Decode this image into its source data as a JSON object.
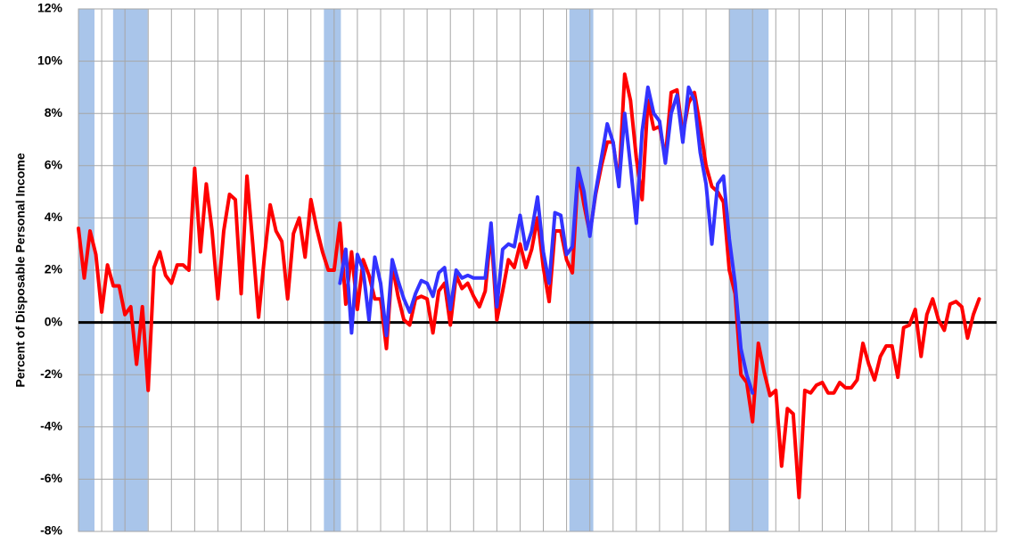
{
  "chart_data": {
    "type": "line",
    "y_axis_label": "Percent of Disposable Personal Income",
    "xlim": [
      1980,
      2019.5
    ],
    "xticks": [
      1980,
      1981,
      1982,
      1983,
      1984,
      1985,
      1986,
      1987,
      1988,
      1989,
      1990,
      1991,
      1992,
      1993,
      1994,
      1995,
      1996,
      1997,
      1998,
      1999,
      2000,
      2001,
      2002,
      2003,
      2004,
      2005,
      2006,
      2007,
      2008,
      2009,
      2010,
      2011,
      2012,
      2013,
      2014,
      2015,
      2016,
      2017,
      2018,
      2019
    ],
    "ylim": [
      -8,
      12
    ],
    "yticks": [
      {
        "value": -8,
        "label": "-8%"
      },
      {
        "value": -6,
        "label": "-6%"
      },
      {
        "value": -4,
        "label": "-4%"
      },
      {
        "value": -2,
        "label": "-2%"
      },
      {
        "value": 0,
        "label": "0%"
      },
      {
        "value": 2,
        "label": "2%"
      },
      {
        "value": 4,
        "label": "4%"
      },
      {
        "value": 6,
        "label": "6%"
      },
      {
        "value": 8,
        "label": "8%"
      },
      {
        "value": 10,
        "label": "10%"
      },
      {
        "value": 12,
        "label": "12%"
      }
    ],
    "grid": true,
    "recessions": [
      [
        1980.0,
        1980.69
      ],
      [
        1981.49,
        1982.98
      ],
      [
        1990.56,
        1991.29
      ],
      [
        2001.12,
        2002.15
      ],
      [
        2008.0,
        2009.69
      ]
    ],
    "recession_color": "#a9c5ea",
    "x": [
      1980,
      1980.25,
      1980.5,
      1980.75,
      1981,
      1981.25,
      1981.5,
      1981.75,
      1982,
      1982.25,
      1982.5,
      1982.75,
      1983,
      1983.25,
      1983.5,
      1983.75,
      1984,
      1984.25,
      1984.5,
      1984.75,
      1985,
      1985.25,
      1985.5,
      1985.75,
      1986,
      1986.25,
      1986.5,
      1986.75,
      1987,
      1987.25,
      1987.5,
      1987.75,
      1988,
      1988.25,
      1988.5,
      1988.75,
      1989,
      1989.25,
      1989.5,
      1989.75,
      1990,
      1990.25,
      1990.5,
      1990.75,
      1991,
      1991.25,
      1991.5,
      1991.75,
      1992,
      1992.25,
      1992.5,
      1992.75,
      1993,
      1993.25,
      1993.5,
      1993.75,
      1994,
      1994.25,
      1994.5,
      1994.75,
      1995,
      1995.25,
      1995.5,
      1995.75,
      1996,
      1996.25,
      1996.5,
      1996.75,
      1997,
      1997.25,
      1997.5,
      1997.75,
      1998,
      1998.25,
      1998.5,
      1998.75,
      1999,
      1999.25,
      1999.5,
      1999.75,
      2000,
      2000.25,
      2000.5,
      2000.75,
      2001,
      2001.25,
      2001.5,
      2001.75,
      2002,
      2002.25,
      2002.5,
      2002.75,
      2003,
      2003.25,
      2003.5,
      2003.75,
      2004,
      2004.25,
      2004.5,
      2004.75,
      2005,
      2005.25,
      2005.5,
      2005.75,
      2006,
      2006.25,
      2006.5,
      2006.75,
      2007,
      2007.25,
      2007.5,
      2007.75,
      2008,
      2008.25,
      2008.5,
      2008.75,
      2009,
      2009.25,
      2009.5,
      2009.75,
      2010,
      2010.25,
      2010.5,
      2010.75,
      2011,
      2011.25,
      2011.5,
      2011.75,
      2012,
      2012.25,
      2012.5,
      2012.75,
      2013,
      2013.25,
      2013.5,
      2013.75,
      2014,
      2014.25,
      2014.5,
      2014.75,
      2015,
      2015.25,
      2015.5,
      2015.75,
      2016,
      2016.25,
      2016.5,
      2016.75,
      2017,
      2017.25,
      2017.5,
      2017.75,
      2018,
      2018.25,
      2018.5,
      2018.75
    ],
    "series": [
      {
        "color": "#ff0000",
        "values": [
          3.6,
          1.7,
          3.5,
          2.6,
          0.4,
          2.2,
          1.4,
          1.4,
          0.3,
          0.6,
          -1.6,
          0.6,
          -2.6,
          2.1,
          2.7,
          1.8,
          1.5,
          2.2,
          2.2,
          2.0,
          5.9,
          2.7,
          5.3,
          3.5,
          0.9,
          3.5,
          4.9,
          4.7,
          1.1,
          5.6,
          3.0,
          0.2,
          2.5,
          4.5,
          3.5,
          3.1,
          0.9,
          3.4,
          4.0,
          2.5,
          4.7,
          3.6,
          2.7,
          2.0,
          2.0,
          3.8,
          0.7,
          2.7,
          0.5,
          2.4,
          1.8,
          0.9,
          0.9,
          -1.0,
          2.2,
          1.0,
          0.1,
          -0.1,
          0.9,
          1.0,
          0.9,
          -0.4,
          1.2,
          1.5,
          -0.1,
          1.8,
          1.3,
          1.5,
          1.0,
          0.6,
          1.2,
          3.5,
          0.1,
          1.2,
          2.4,
          2.1,
          3.0,
          2.1,
          2.8,
          4.0,
          2.1,
          0.8,
          3.5,
          3.5,
          2.4,
          1.9,
          5.8,
          4.5,
          3.4,
          4.9,
          6.0,
          6.9,
          6.9,
          5.3,
          9.5,
          8.5,
          6.3,
          4.7,
          8.5,
          7.4,
          7.5,
          6.3,
          8.8,
          8.9,
          7.2,
          8.4,
          8.8,
          7.5,
          6.0,
          5.2,
          5.0,
          4.6,
          2.0,
          1.1,
          -2.0,
          -2.3,
          -3.8,
          -0.8,
          -1.9,
          -2.8,
          -2.6,
          -5.5,
          -3.3,
          -3.5,
          -6.7,
          -2.6,
          -2.7,
          -2.4,
          -2.3,
          -2.7,
          -2.7,
          -2.3,
          -2.5,
          -2.5,
          -2.2,
          -0.8,
          -1.6,
          -2.2,
          -1.3,
          -0.9,
          -0.9,
          -2.1,
          -0.2,
          -0.1,
          0.5,
          -1.3,
          0.3,
          0.9,
          0.1,
          -0.3,
          0.7,
          0.8,
          0.6,
          -0.6,
          0.3,
          0.9
        ]
      },
      {
        "color": "#3333ff",
        "values": [
          null,
          null,
          null,
          null,
          null,
          null,
          null,
          null,
          null,
          null,
          null,
          null,
          null,
          null,
          null,
          null,
          null,
          null,
          null,
          null,
          null,
          null,
          null,
          null,
          null,
          null,
          null,
          null,
          null,
          null,
          null,
          null,
          null,
          null,
          null,
          null,
          null,
          null,
          null,
          null,
          null,
          null,
          null,
          null,
          null,
          1.5,
          2.8,
          -0.4,
          2.6,
          2.0,
          0.1,
          2.5,
          1.5,
          -0.5,
          2.4,
          1.6,
          0.9,
          0.4,
          1.1,
          1.6,
          1.5,
          1.0,
          1.9,
          2.1,
          0.5,
          2.0,
          1.7,
          1.8,
          1.7,
          1.7,
          1.7,
          3.8,
          0.6,
          2.8,
          3.0,
          2.9,
          4.1,
          2.8,
          3.5,
          4.8,
          2.7,
          1.5,
          4.2,
          4.1,
          2.6,
          2.9,
          5.9,
          5.0,
          3.3,
          5.0,
          6.3,
          7.6,
          6.9,
          5.2,
          8.0,
          6.0,
          3.8,
          7.3,
          9.0,
          8.0,
          7.7,
          6.1,
          8.0,
          8.7,
          6.9,
          9.0,
          8.5,
          6.5,
          5.3,
          3.0,
          5.3,
          5.6,
          3.2,
          1.5,
          -1.0,
          -2.0,
          -2.7,
          null,
          null,
          null,
          null,
          null,
          null,
          null,
          null,
          null,
          null,
          null,
          null,
          null,
          null,
          null,
          null,
          null,
          null,
          null,
          null,
          null,
          null,
          null,
          null,
          null,
          null,
          null,
          null,
          null,
          null,
          null,
          null,
          null,
          null,
          null,
          null,
          null,
          null,
          null
        ]
      }
    ]
  }
}
